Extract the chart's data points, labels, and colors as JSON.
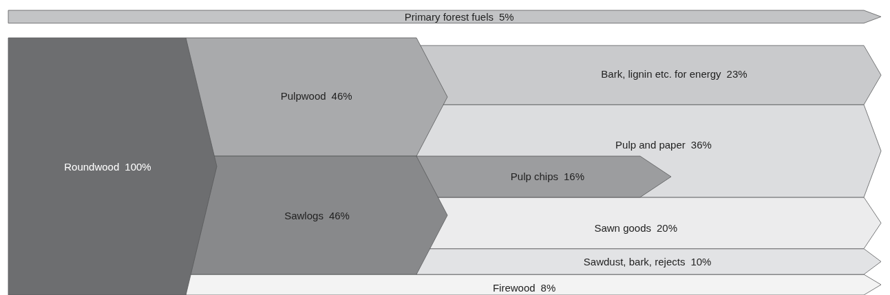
{
  "chart_data": {
    "type": "other",
    "categories": [
      "Primary forest fuels",
      "Roundwood",
      "Pulpwood",
      "Sawlogs",
      "Bark, lignin etc. for energy",
      "Pulp and paper",
      "Pulp chips",
      "Sawn goods",
      "Sawdust, bark, rejects",
      "Firewood"
    ],
    "values": [
      5,
      100,
      46,
      46,
      23,
      36,
      16,
      20,
      10,
      8
    ],
    "value_labels": [
      "5%",
      "100%",
      "46%",
      "46%",
      "23%",
      "36%",
      "16%",
      "20%",
      "10%",
      "8%"
    ],
    "colors": [
      "#c3c4c6",
      "#6d6e70",
      "#a9aaac",
      "#88898b",
      "#c9cacc",
      "#dcdddf",
      "#9c9d9f",
      "#ececed",
      "#e2e3e5",
      "#f3f3f3"
    ]
  }
}
